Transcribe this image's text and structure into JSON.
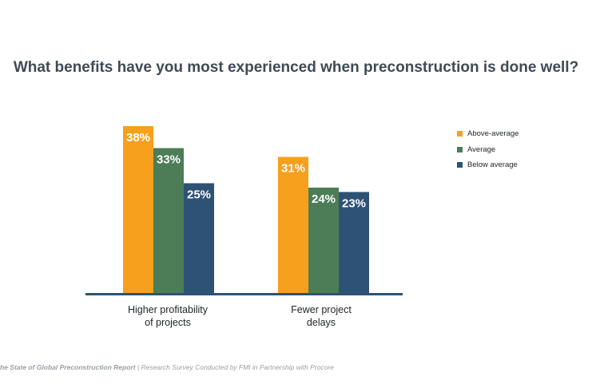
{
  "title": "What benefits have you most experienced when preconstruction is done well?",
  "footer": {
    "report": "he State of Global Preconstruction Report",
    "separator": "|",
    "note": "Research Survey Conducted by FMI in Partnership with Procore"
  },
  "colors": {
    "above_average": "#f7a01d",
    "average": "#4c7d56",
    "below_average": "#2d5275",
    "axis": "#2d5275"
  },
  "chart_data": {
    "type": "bar",
    "categories": [
      "Higher profitability\nof projects",
      "Fewer project\ndelays"
    ],
    "series": [
      {
        "name": "Above-average",
        "values": [
          38,
          31
        ],
        "labels": [
          "38%",
          "31%"
        ]
      },
      {
        "name": "Average",
        "values": [
          33,
          24
        ],
        "labels": [
          "33%",
          "24%"
        ]
      },
      {
        "name": "Below average",
        "values": [
          25,
          23
        ],
        "labels": [
          "25%",
          "23%"
        ]
      }
    ],
    "unit": "%",
    "legend_position": "right",
    "grid": false
  }
}
